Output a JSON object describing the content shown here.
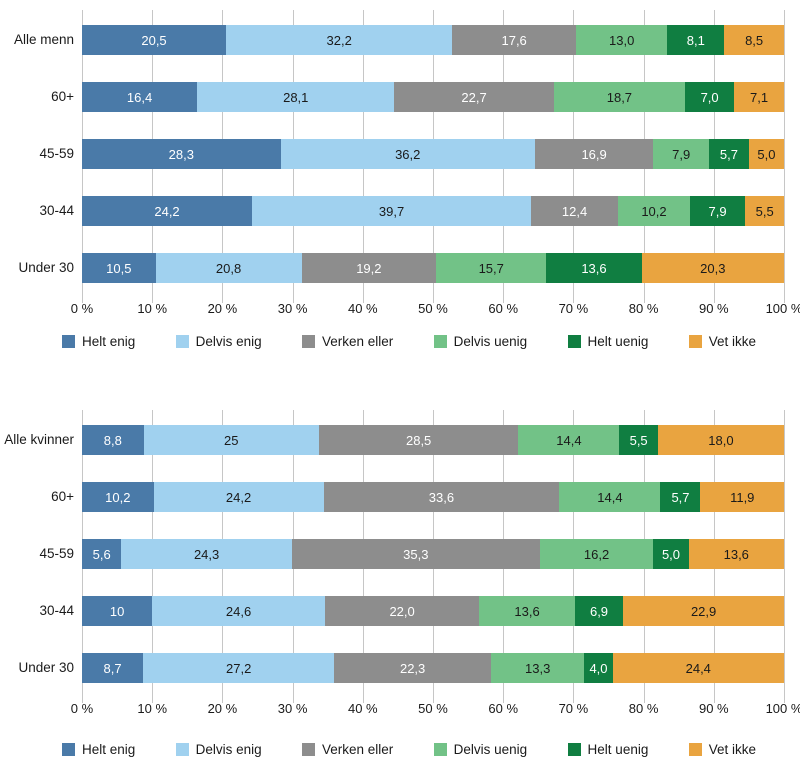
{
  "page": {
    "background": "#ffffff",
    "grid_color": "#c6c6c6",
    "text_color": "#1a1a1a"
  },
  "chart_data": [
    {
      "type": "bar",
      "orientation": "horizontal",
      "stacked": true,
      "categories": [
        "Alle menn",
        "60+",
        "45-59",
        "30-44",
        "Under 30"
      ],
      "series": [
        {
          "name": "Helt enig",
          "color": "#4a7aa8",
          "label_color": "#ffffff",
          "values": [
            20.5,
            16.4,
            28.3,
            24.2,
            10.5
          ],
          "labels": [
            "20,5",
            "16,4",
            "28,3",
            "24,2",
            "10,5"
          ]
        },
        {
          "name": "Delvis enig",
          "color": "#a0d1ef",
          "label_color": "#1a1a1a",
          "values": [
            32.2,
            28.1,
            36.2,
            39.7,
            20.8
          ],
          "labels": [
            "32,2",
            "28,1",
            "36,2",
            "39,7",
            "20,8"
          ]
        },
        {
          "name": "Verken eller",
          "color": "#8d8d8d",
          "label_color": "#ffffff",
          "values": [
            17.6,
            22.7,
            16.9,
            12.4,
            19.2
          ],
          "labels": [
            "17,6",
            "22,7",
            "16,9",
            "12,4",
            "19,2"
          ]
        },
        {
          "name": "Delvis uenig",
          "color": "#72c287",
          "label_color": "#1a1a1a",
          "values": [
            13.0,
            18.7,
            7.9,
            10.2,
            15.7
          ],
          "labels": [
            "13,0",
            "18,7",
            "7,9",
            "10,2",
            "15,7"
          ]
        },
        {
          "name": "Helt uenig",
          "color": "#107e41",
          "label_color": "#ffffff",
          "values": [
            8.1,
            7.0,
            5.7,
            7.9,
            13.6
          ],
          "labels": [
            "8,1",
            "7,0",
            "5,7",
            "7,9",
            "13,6"
          ]
        },
        {
          "name": "Vet ikke",
          "color": "#e9a440",
          "label_color": "#1a1a1a",
          "values": [
            8.5,
            7.1,
            5.0,
            5.5,
            20.3
          ],
          "labels": [
            "8,5",
            "7,1",
            "5,0",
            "5,5",
            "20,3"
          ]
        }
      ],
      "x_ticks": [
        "0 %",
        "10 %",
        "20 %",
        "30 %",
        "40 %",
        "50 %",
        "60 %",
        "70 %",
        "80 %",
        "90 %",
        "100 %"
      ],
      "xlim": [
        0,
        100
      ],
      "grid": true,
      "legend_position": "bottom"
    },
    {
      "type": "bar",
      "orientation": "horizontal",
      "stacked": true,
      "categories": [
        "Alle kvinner",
        "60+",
        "45-59",
        "30-44",
        "Under 30"
      ],
      "series": [
        {
          "name": "Helt enig",
          "color": "#4a7aa8",
          "label_color": "#ffffff",
          "values": [
            8.8,
            10.2,
            5.6,
            10,
            8.7
          ],
          "labels": [
            "8,8",
            "10,2",
            "5,6",
            "10",
            "8,7"
          ]
        },
        {
          "name": "Delvis enig",
          "color": "#a0d1ef",
          "label_color": "#1a1a1a",
          "values": [
            25,
            24.2,
            24.3,
            24.6,
            27.2
          ],
          "labels": [
            "25",
            "24,2",
            "24,3",
            "24,6",
            "27,2"
          ]
        },
        {
          "name": "Verken eller",
          "color": "#8d8d8d",
          "label_color": "#ffffff",
          "values": [
            28.5,
            33.6,
            35.3,
            22.0,
            22.3
          ],
          "labels": [
            "28,5",
            "33,6",
            "35,3",
            "22,0",
            "22,3"
          ]
        },
        {
          "name": "Delvis uenig",
          "color": "#72c287",
          "label_color": "#1a1a1a",
          "values": [
            14.4,
            14.4,
            16.2,
            13.6,
            13.3
          ],
          "labels": [
            "14,4",
            "14,4",
            "16,2",
            "13,6",
            "13,3"
          ]
        },
        {
          "name": "Helt uenig",
          "color": "#107e41",
          "label_color": "#ffffff",
          "values": [
            5.5,
            5.7,
            5.0,
            6.9,
            4.0
          ],
          "labels": [
            "5,5",
            "5,7",
            "5,0",
            "6,9",
            "4,0"
          ]
        },
        {
          "name": "Vet ikke",
          "color": "#e9a440",
          "label_color": "#1a1a1a",
          "values": [
            18.0,
            11.9,
            13.6,
            22.9,
            24.4
          ],
          "labels": [
            "18,0",
            "11,9",
            "13,6",
            "22,9",
            "24,4"
          ]
        }
      ],
      "x_ticks": [
        "0 %",
        "10 %",
        "20 %",
        "30 %",
        "40 %",
        "50 %",
        "60 %",
        "70 %",
        "80 %",
        "90 %",
        "100 %"
      ],
      "xlim": [
        0,
        100
      ],
      "grid": true,
      "legend_position": "bottom"
    }
  ]
}
